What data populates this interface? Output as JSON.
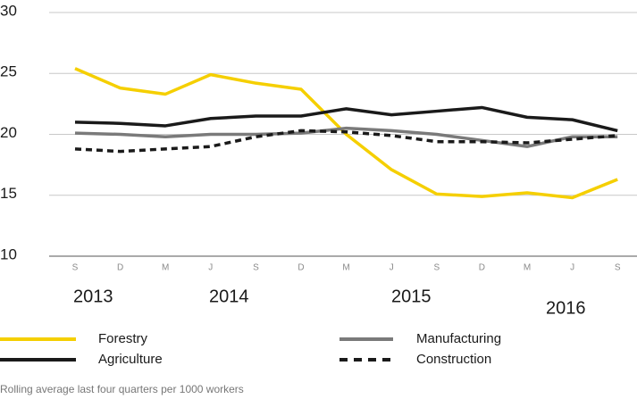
{
  "chart_data": {
    "type": "line",
    "categories": [
      "S",
      "D",
      "M",
      "J",
      "S",
      "D",
      "M",
      "J",
      "S",
      "D",
      "M",
      "J",
      "S"
    ],
    "series": [
      {
        "name": "Forestry",
        "color": "#f5cf00",
        "dashed": false,
        "values": [
          25.4,
          23.8,
          23.3,
          24.9,
          24.2,
          23.7,
          20.0,
          17.1,
          15.1,
          14.9,
          15.2,
          14.8,
          16.3
        ]
      },
      {
        "name": "Agriculture",
        "color": "#1a1a1a",
        "dashed": false,
        "values": [
          21.0,
          20.9,
          20.7,
          21.3,
          21.5,
          21.5,
          22.1,
          21.6,
          21.9,
          22.2,
          21.4,
          21.2,
          20.3
        ]
      },
      {
        "name": "Manufacturing",
        "color": "#7a7a7a",
        "dashed": false,
        "values": [
          20.1,
          20.0,
          19.8,
          20.0,
          20.0,
          20.1,
          20.5,
          20.3,
          20.0,
          19.5,
          19.0,
          19.8,
          19.8
        ]
      },
      {
        "name": "Construction",
        "color": "#1a1a1a",
        "dashed": true,
        "values": [
          18.8,
          18.6,
          18.8,
          19.0,
          19.8,
          20.3,
          20.2,
          19.9,
          19.4,
          19.4,
          19.3,
          19.6,
          19.9
        ]
      }
    ],
    "annotations": [
      "2013",
      "2014",
      "2015",
      "2016"
    ],
    "caption": "Rolling average last four quarters per 1000 workers",
    "ylim": [
      10,
      30
    ],
    "yticks": [
      10,
      15,
      20,
      25,
      30
    ],
    "grid": true
  }
}
